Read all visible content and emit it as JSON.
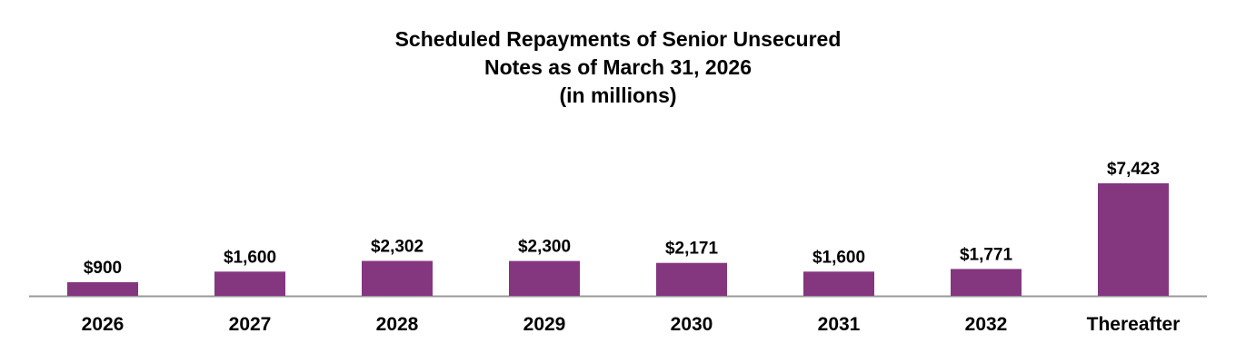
{
  "chart_data": {
    "type": "bar",
    "title_lines": [
      "Scheduled Repayments of Senior Unsecured",
      "Notes as of March 31, 2026",
      "(in millions)"
    ],
    "categories": [
      "2026",
      "2027",
      "2028",
      "2029",
      "2030",
      "2031",
      "2032",
      "Thereafter"
    ],
    "values": [
      900,
      1600,
      2302,
      2300,
      2171,
      1600,
      1771,
      7423
    ],
    "data_labels": [
      "$900",
      "$1,600",
      "$2,302",
      "$2,300",
      "$2,171",
      "$1,600",
      "$1,771",
      "$7,423"
    ],
    "xlabel": "",
    "ylabel": "",
    "ylim": [
      0,
      7423
    ],
    "grid": false,
    "legend": "none",
    "colors": {
      "bar": "#84367F",
      "axis": "#9A9A9A"
    }
  }
}
